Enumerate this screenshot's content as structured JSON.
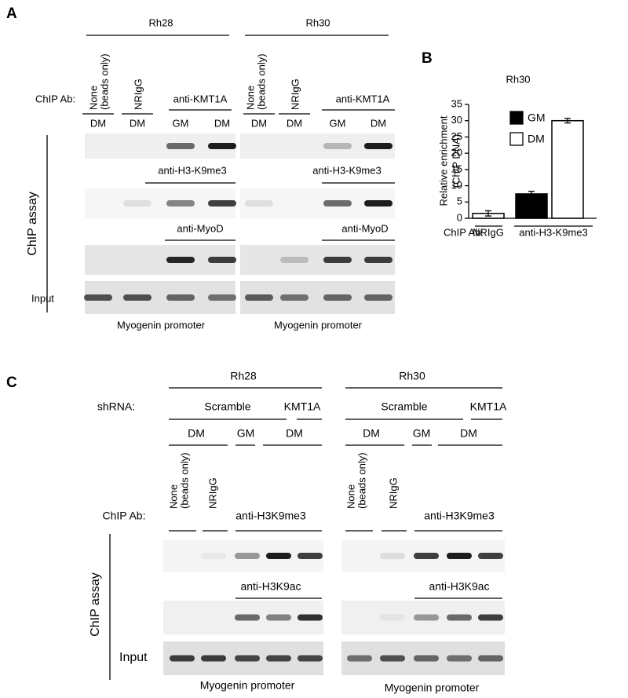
{
  "panel_a": {
    "label": "A",
    "chip_ab": "ChIP Ab:",
    "side_label": "ChIP assay",
    "input": "Input",
    "groups": [
      {
        "name": "Rh28",
        "headers": [
          [
            "None",
            "(beads only)"
          ],
          [
            "NRIgG"
          ]
        ],
        "antibody": "anti-KMT1A",
        "lanes": [
          "DM",
          "DM",
          "GM",
          "DM"
        ],
        "antibody2": "anti-H3-K9me3",
        "antibody3": "anti-MyoD",
        "promoter": "Myogenin promoter"
      },
      {
        "name": "Rh30",
        "headers": [
          [
            "None",
            "(beads only)"
          ],
          [
            "NRIgG"
          ]
        ],
        "antibody": "anti-KMT1A",
        "lanes": [
          "DM",
          "DM",
          "GM",
          "DM"
        ],
        "antibody2": "anti-H3-K9me3",
        "antibody3": "anti-MyoD",
        "promoter": "Myogenin promoter"
      }
    ]
  },
  "chart_data": {
    "type": "bar",
    "label": "B",
    "title": "Rh30",
    "y_label": [
      "Relative enrichment",
      "(ChIP DNA)"
    ],
    "x_prefix": "ChIP Ab:",
    "categories": [
      "NRIgG",
      "anti-H3-K9me3"
    ],
    "series": [
      {
        "name": "GM",
        "color": "#000000",
        "values": [
          null,
          7.5
        ],
        "errors": [
          null,
          0.8
        ]
      },
      {
        "name": "DM",
        "color": "#ffffff",
        "values": [
          1.5,
          30
        ],
        "errors": [
          0.8,
          0.7
        ]
      }
    ],
    "ylim": [
      0,
      35
    ],
    "yticks": [
      0,
      5,
      10,
      15,
      20,
      25,
      30,
      35
    ],
    "legend": "upper left"
  },
  "panel_c": {
    "label": "C",
    "shrna_label": "shRNA:",
    "chip_ab": "ChIP Ab:",
    "side_label": "ChIP assay",
    "input": "Input",
    "groups": [
      {
        "name": "Rh28",
        "shrna": [
          "Scramble",
          "KMT1A"
        ],
        "conditions": [
          "DM",
          "GM",
          "DM"
        ],
        "headers": [
          [
            "None",
            "(beads only)"
          ],
          [
            "NRIgG"
          ]
        ],
        "antibody": "anti-H3K9me3",
        "antibody2": "anti-H3K9ac",
        "promoter": "Myogenin promoter"
      },
      {
        "name": "Rh30",
        "shrna": [
          "Scramble",
          "KMT1A"
        ],
        "conditions": [
          "DM",
          "GM",
          "DM"
        ],
        "headers": [
          [
            "None",
            "(beads only)"
          ],
          [
            "NRIgG"
          ]
        ],
        "antibody": "anti-H3K9me3",
        "antibody2": "anti-H3K9ac",
        "promoter": "Myogenin promoter"
      }
    ]
  }
}
